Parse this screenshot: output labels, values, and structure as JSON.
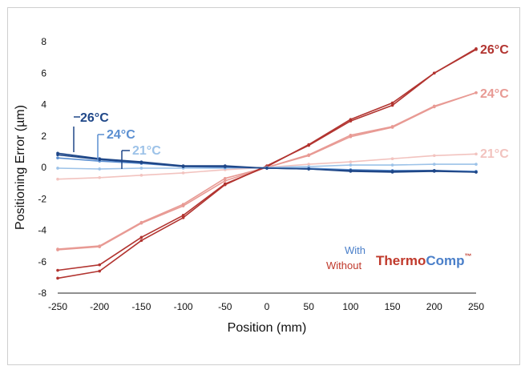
{
  "chart_data": {
    "type": "line",
    "xlabel": "Position (mm)",
    "ylabel": "Positioning Error (µm)",
    "xlim": [
      -250,
      250
    ],
    "ylim": [
      -8,
      8
    ],
    "x_ticks": [
      -250,
      -200,
      -150,
      -100,
      -50,
      0,
      50,
      100,
      150,
      200,
      250
    ],
    "y_ticks": [
      -8,
      -6,
      -4,
      -2,
      0,
      2,
      4,
      6,
      8
    ],
    "grid": false,
    "x": [
      -250,
      -200,
      -150,
      -100,
      -50,
      0,
      50,
      100,
      150,
      200,
      250
    ],
    "series": [
      {
        "name": "Without 21°C",
        "group": "without",
        "color": "#f2c3bf",
        "values": [
          -0.75,
          -0.65,
          -0.5,
          -0.35,
          -0.15,
          0.0,
          0.2,
          0.35,
          0.55,
          0.75,
          0.85
        ]
      },
      {
        "name": "Without 24°C a",
        "group": "without",
        "color": "#e89a94",
        "values": [
          -5.2,
          -5.0,
          -3.5,
          -2.35,
          -0.7,
          0.0,
          0.8,
          2.05,
          2.6,
          3.9,
          4.75
        ]
      },
      {
        "name": "Without 24°C b",
        "group": "without",
        "color": "#e89a94",
        "values": [
          -5.25,
          -5.05,
          -3.55,
          -2.45,
          -0.85,
          0.0,
          0.75,
          1.95,
          2.55,
          3.85,
          4.75
        ]
      },
      {
        "name": "Without 26°C a",
        "group": "without",
        "color": "#b23430",
        "values": [
          -6.55,
          -6.2,
          -4.45,
          -3.05,
          -1.05,
          0.05,
          1.45,
          3.05,
          4.1,
          6.0,
          7.5
        ]
      },
      {
        "name": "Without 26°C b",
        "group": "without",
        "color": "#b23430",
        "values": [
          -7.05,
          -6.6,
          -4.65,
          -3.2,
          -1.1,
          0.1,
          1.4,
          2.95,
          3.95,
          6.0,
          7.55
        ]
      },
      {
        "name": "With 21°C",
        "group": "with",
        "color": "#9cc2e8",
        "values": [
          -0.05,
          -0.1,
          -0.05,
          -0.05,
          -0.05,
          0.0,
          0.05,
          0.15,
          0.15,
          0.2,
          0.2
        ]
      },
      {
        "name": "With 24°C",
        "group": "with",
        "color": "#5b8fd1",
        "values": [
          0.6,
          0.4,
          0.25,
          0.05,
          0.0,
          -0.05,
          -0.05,
          -0.15,
          -0.2,
          -0.2,
          -0.25
        ]
      },
      {
        "name": "With 26°C a",
        "group": "with",
        "color": "#1f4788",
        "values": [
          0.9,
          0.55,
          0.35,
          0.1,
          0.1,
          -0.05,
          -0.1,
          -0.25,
          -0.3,
          -0.25,
          -0.3
        ]
      },
      {
        "name": "With 26°C b",
        "group": "with",
        "color": "#1f4788",
        "values": [
          0.8,
          0.5,
          0.3,
          0.05,
          0.05,
          -0.05,
          -0.1,
          -0.2,
          -0.25,
          -0.2,
          -0.3
        ]
      }
    ],
    "labels": {
      "without_26": "26°C",
      "without_24": "24°C",
      "without_21": "21°C",
      "with_26": "26°C",
      "with_24": "24°C",
      "with_21": "21°C"
    },
    "legend": {
      "with": "With",
      "without": "Without",
      "brand_part1": "Thermo",
      "brand_part2": "Comp",
      "brand_tm": "™"
    },
    "colors": {
      "with_dark": "#1f4788",
      "with_mid": "#5b8fd1",
      "with_light": "#9cc2e8",
      "without_dark": "#b23430",
      "without_mid": "#e89a94",
      "without_light": "#f2c3bf",
      "brand_red": "#c0392b",
      "brand_blue": "#4a7fc9"
    }
  }
}
